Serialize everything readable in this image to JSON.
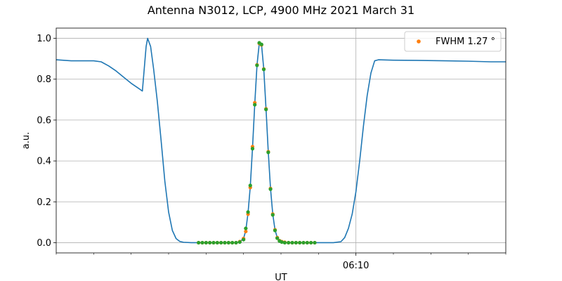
{
  "chart_data": {
    "type": "line",
    "title": "Antenna N3012, LCP, 4900 MHz 2021 March 31",
    "xlabel": "UT",
    "ylabel": "a.u.",
    "xlim": [
      0,
      60
    ],
    "ylim": [
      -0.05,
      1.05
    ],
    "grid": true,
    "legend_position": "top-right",
    "x_major_ticks": [
      {
        "x": 40,
        "label": "06:10"
      }
    ],
    "x_minor_ticks": [
      0,
      5,
      10,
      15,
      20,
      25,
      30,
      35,
      45,
      50,
      55,
      60
    ],
    "y_ticks": [
      0.0,
      0.2,
      0.4,
      0.6,
      0.8,
      1.0
    ],
    "y_tick_labels": [
      "0.0",
      "0.2",
      "0.4",
      "0.6",
      "0.8",
      "1.0"
    ],
    "colors": {
      "line": "#1f77b4",
      "fwhm_points": "#ff7f0e",
      "beam_points": "#2ca02c",
      "grid": "#b0b0b0"
    },
    "series": [
      {
        "type": "line",
        "color": "#1f77b4",
        "x": [
          0,
          2,
          4,
          5,
          6,
          7,
          8,
          9,
          10,
          11,
          11.5,
          12.0,
          12.2,
          12.6,
          13.0,
          13.5,
          14.0,
          14.5,
          15.0,
          15.5,
          16.0,
          16.5,
          17.0,
          18.0,
          19.0,
          20.0,
          22,
          24,
          24.5,
          25.0,
          25.3,
          25.6,
          25.9,
          26.2,
          26.5,
          26.8,
          27.1,
          27.4,
          27.7,
          28.0,
          28.3,
          28.6,
          28.9,
          29.2,
          29.5,
          29.8,
          30.1,
          30.4,
          31,
          33,
          36,
          37,
          38,
          38.5,
          39.0,
          39.5,
          40.0,
          40.5,
          41.0,
          41.5,
          42.0,
          42.5,
          43,
          45,
          48,
          52,
          55,
          58,
          60
        ],
        "y": [
          0.895,
          0.89,
          0.89,
          0.89,
          0.885,
          0.865,
          0.84,
          0.81,
          0.78,
          0.755,
          0.742,
          0.96,
          1.0,
          0.96,
          0.85,
          0.69,
          0.5,
          0.3,
          0.15,
          0.06,
          0.02,
          0.006,
          0.002,
          0.0,
          0.0,
          0.0,
          0.0,
          0.0,
          0.005,
          0.02,
          0.06,
          0.145,
          0.275,
          0.465,
          0.68,
          0.87,
          0.975,
          0.97,
          0.85,
          0.655,
          0.445,
          0.265,
          0.14,
          0.063,
          0.025,
          0.008,
          0.002,
          0.0,
          0.0,
          0.0,
          0.0,
          0.0,
          0.005,
          0.025,
          0.07,
          0.14,
          0.25,
          0.4,
          0.57,
          0.72,
          0.83,
          0.89,
          0.895,
          0.893,
          0.892,
          0.89,
          0.888,
          0.885,
          0.885
        ]
      },
      {
        "type": "scatter",
        "name": "FWHM 1.27 °",
        "color": "#ff7f0e",
        "x": [
          19.0,
          19.5,
          20.0,
          20.5,
          21.0,
          21.5,
          22.0,
          22.5,
          23.0,
          23.5,
          24.0,
          24.5,
          25.0,
          25.3,
          25.6,
          25.9,
          26.2,
          26.5,
          26.8,
          27.1,
          27.4,
          27.7,
          28.0,
          28.3,
          28.6,
          28.9,
          29.2,
          29.5,
          29.8,
          30.1,
          30.5,
          31.0,
          31.5,
          32.0,
          32.5,
          33.0,
          33.5,
          34.0,
          34.5
        ],
        "y": [
          0.0,
          0.0,
          0.0,
          0.0,
          0.0,
          0.0,
          0.0,
          0.0,
          0.0,
          0.0,
          0.0,
          0.005,
          0.02,
          0.055,
          0.14,
          0.27,
          0.47,
          0.685,
          0.87,
          0.975,
          0.968,
          0.85,
          0.655,
          0.445,
          0.265,
          0.14,
          0.063,
          0.025,
          0.01,
          0.005,
          0.002,
          0.0,
          0.0,
          0.0,
          0.0,
          0.0,
          0.0,
          0.0,
          0.0
        ]
      },
      {
        "type": "scatter",
        "color": "#2ca02c",
        "x": [
          19.0,
          19.5,
          20.0,
          20.5,
          21.0,
          21.5,
          22.0,
          22.5,
          23.0,
          23.5,
          24.0,
          24.5,
          25.0,
          25.3,
          25.6,
          25.9,
          26.2,
          26.5,
          26.8,
          27.1,
          27.4,
          27.7,
          28.0,
          28.3,
          28.6,
          28.9,
          29.2,
          29.5,
          29.8,
          30.1,
          30.5,
          31.0,
          31.5,
          32.0,
          32.5,
          33.0,
          33.5,
          34.0,
          34.5
        ],
        "y": [
          0.0,
          0.0,
          0.0,
          0.0,
          0.0,
          0.0,
          0.0,
          0.0,
          0.0,
          0.0,
          0.0,
          0.003,
          0.015,
          0.07,
          0.15,
          0.28,
          0.46,
          0.675,
          0.868,
          0.978,
          0.97,
          0.848,
          0.652,
          0.442,
          0.262,
          0.136,
          0.06,
          0.022,
          0.008,
          0.003,
          0.0,
          0.0,
          0.0,
          0.0,
          0.0,
          0.0,
          0.0,
          0.0,
          0.0
        ]
      }
    ]
  }
}
